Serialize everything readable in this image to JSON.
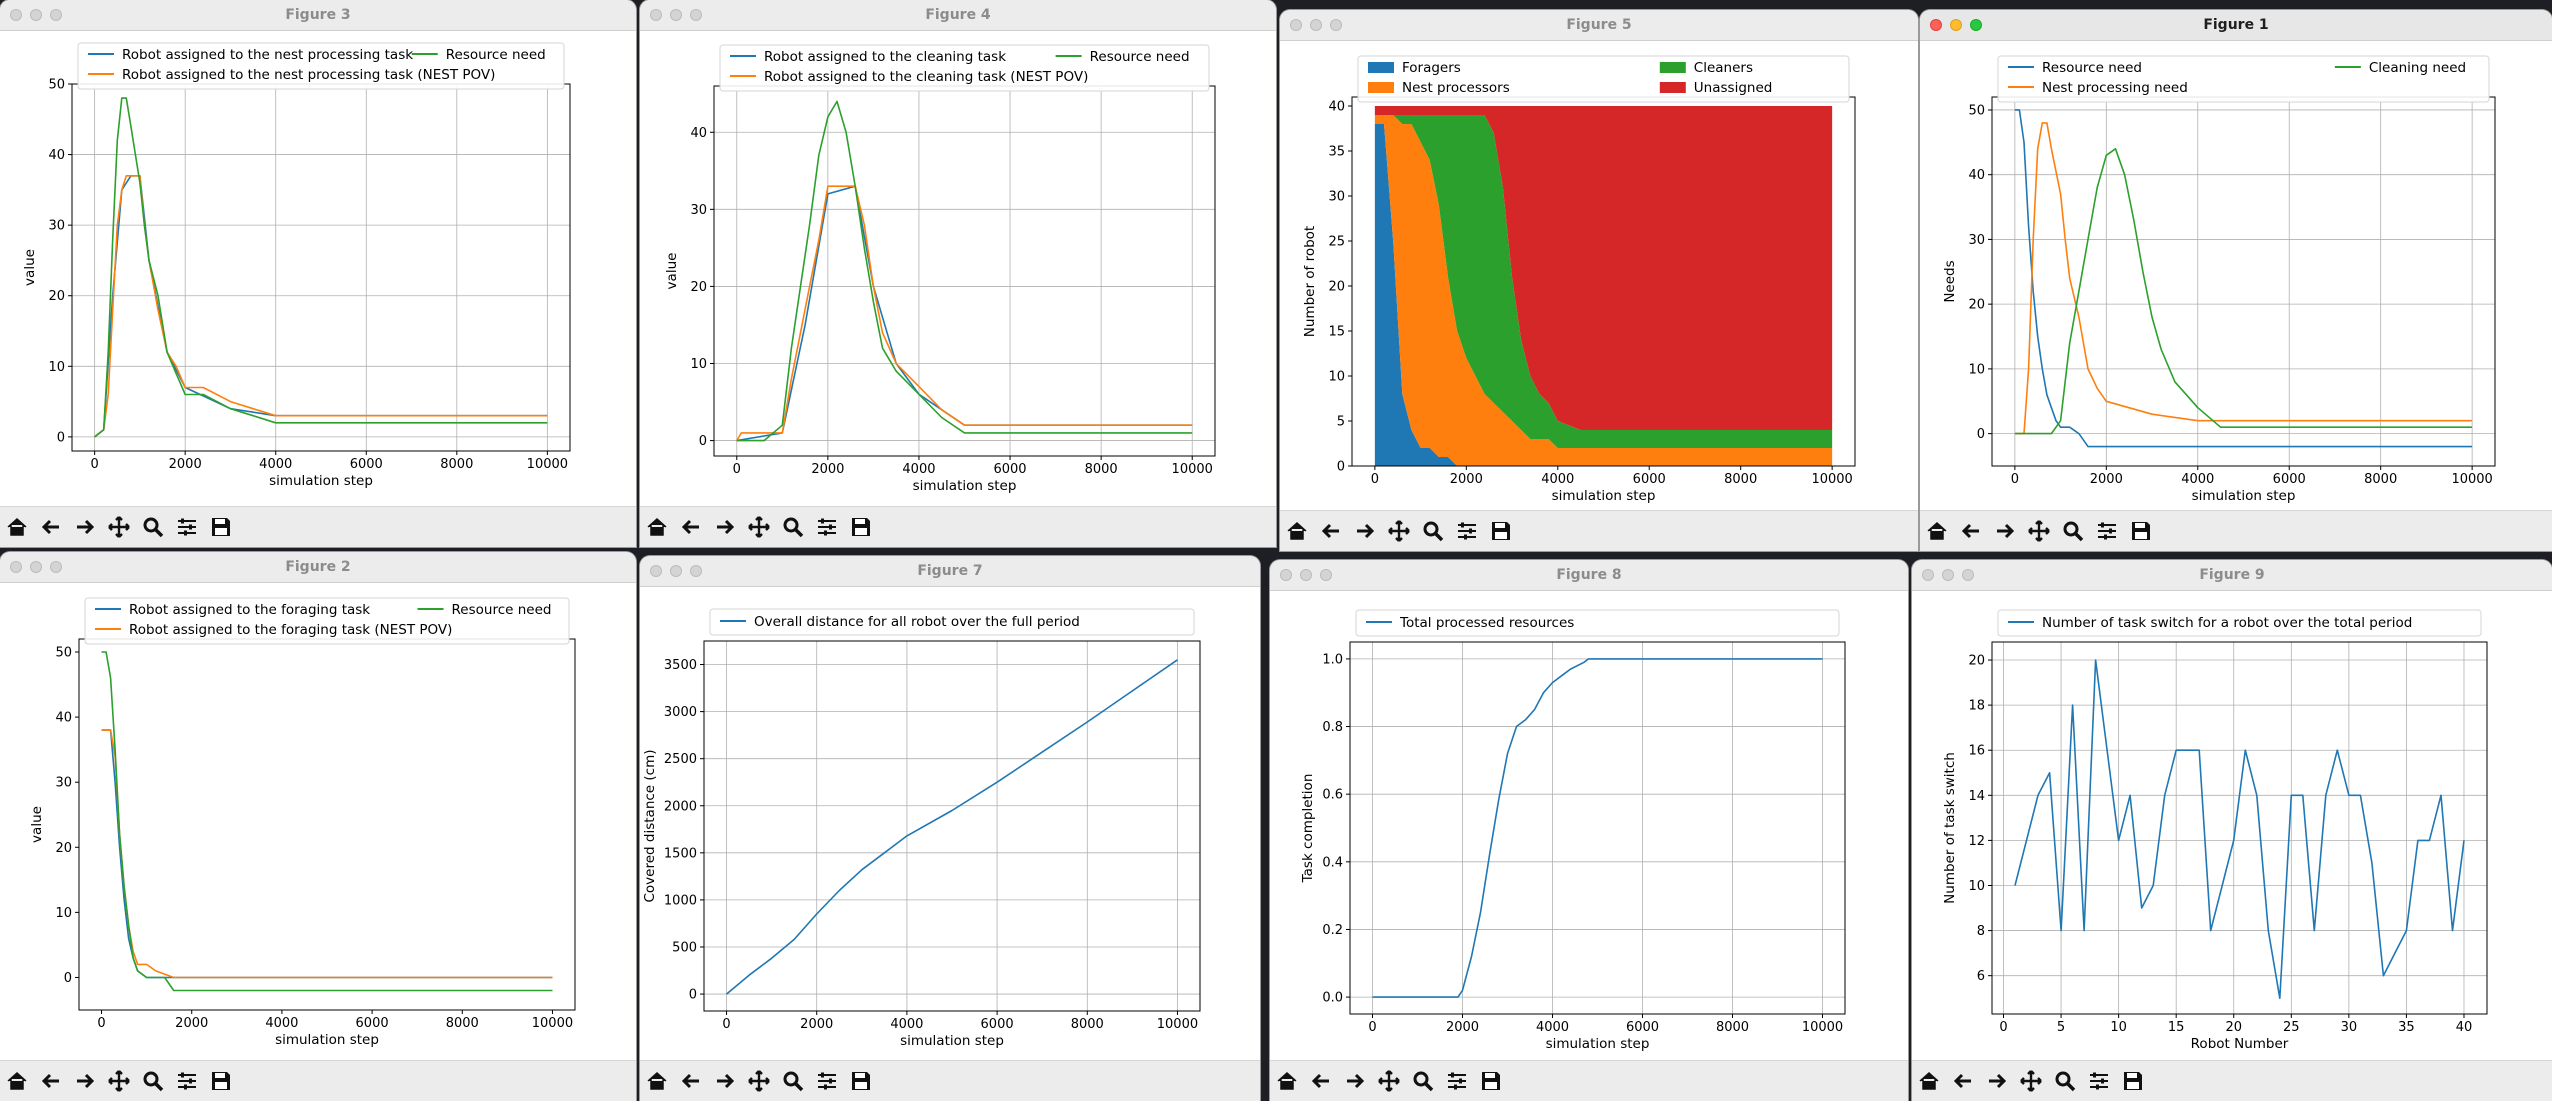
{
  "windows": {
    "fig3": {
      "title": "Figure 3"
    },
    "fig4": {
      "title": "Figure 4"
    },
    "fig5": {
      "title": "Figure 5"
    },
    "fig1": {
      "title": "Figure 1"
    },
    "fig2": {
      "title": "Figure 2"
    },
    "fig7": {
      "title": "Figure 7"
    },
    "fig8": {
      "title": "Figure 8"
    },
    "fig9": {
      "title": "Figure 9"
    }
  },
  "toolbar": [
    "home-icon",
    "back-icon",
    "forward-icon",
    "pan-icon",
    "zoom-icon",
    "configure-icon",
    "save-icon"
  ],
  "colors": {
    "blue": "#1f77b4",
    "orange": "#ff7f0e",
    "green": "#2ca02c",
    "red": "#d62728"
  },
  "chart_data": [
    {
      "id": "fig3",
      "type": "line",
      "xlabel": "simulation step",
      "ylabel": "value",
      "xlim": [
        -500,
        10500
      ],
      "ylim": [
        -2,
        50
      ],
      "xticks": [
        0,
        2000,
        4000,
        6000,
        8000,
        10000
      ],
      "yticks": [
        0,
        10,
        20,
        30,
        40,
        50
      ],
      "grid": true,
      "legend": "top",
      "series": [
        {
          "name": "Robot assigned to the nest processing task",
          "color": "blue",
          "x": [
            0,
            200,
            400,
            600,
            800,
            1000,
            1200,
            1600,
            2000,
            3000,
            4000,
            10000
          ],
          "y": [
            0,
            1,
            20,
            35,
            37,
            37,
            25,
            12,
            7,
            4,
            3,
            3
          ]
        },
        {
          "name": "Robot assigned to the nest processing task (NEST POV)",
          "color": "orange",
          "x": [
            0,
            200,
            300,
            400,
            500,
            600,
            700,
            800,
            1000,
            1100,
            1200,
            1400,
            1600,
            1800,
            2000,
            2400,
            3000,
            3500,
            4000,
            10000
          ],
          "y": [
            0,
            1,
            6,
            18,
            30,
            35,
            37,
            37,
            37,
            30,
            25,
            18,
            12,
            10,
            7,
            7,
            5,
            4,
            3,
            3
          ]
        },
        {
          "name": "Resource need",
          "color": "green",
          "x": [
            0,
            200,
            300,
            400,
            500,
            600,
            700,
            800,
            900,
            1000,
            1100,
            1200,
            1400,
            1600,
            1800,
            2000,
            2400,
            3000,
            3500,
            4000,
            10000
          ],
          "y": [
            0,
            1,
            12,
            28,
            42,
            48,
            48,
            44,
            40,
            36,
            30,
            25,
            20,
            12,
            9,
            6,
            6,
            4,
            3,
            2,
            2
          ]
        }
      ]
    },
    {
      "id": "fig4",
      "type": "line",
      "xlabel": "simulation step",
      "ylabel": "value",
      "xlim": [
        -500,
        10500
      ],
      "ylim": [
        -2,
        46
      ],
      "xticks": [
        0,
        2000,
        4000,
        6000,
        8000,
        10000
      ],
      "yticks": [
        0,
        10,
        20,
        30,
        40
      ],
      "grid": true,
      "legend": "top",
      "series": [
        {
          "name": "Robot assigned to the cleaning task",
          "color": "blue",
          "x": [
            0,
            1000,
            1500,
            2000,
            2600,
            3000,
            3500,
            4000,
            5000,
            10000
          ],
          "y": [
            0,
            1,
            15,
            32,
            33,
            20,
            10,
            6,
            2,
            2
          ]
        },
        {
          "name": "Robot assigned to the cleaning task (NEST POV)",
          "color": "orange",
          "x": [
            0,
            100,
            1000,
            1200,
            1400,
            1600,
            1800,
            2000,
            2400,
            2600,
            2800,
            3000,
            3200,
            3500,
            4000,
            4500,
            5000,
            10000
          ],
          "y": [
            0,
            1,
            1,
            8,
            14,
            20,
            26,
            33,
            33,
            33,
            28,
            20,
            14,
            10,
            7,
            4,
            2,
            2
          ]
        },
        {
          "name": "Resource need",
          "color": "green",
          "x": [
            0,
            600,
            1000,
            1200,
            1400,
            1600,
            1800,
            2000,
            2200,
            2400,
            2600,
            2800,
            3000,
            3200,
            3500,
            4000,
            4500,
            5000,
            10000
          ],
          "y": [
            0,
            0,
            2,
            12,
            20,
            28,
            37,
            42,
            44,
            40,
            33,
            25,
            18,
            12,
            9,
            6,
            3,
            1,
            1
          ]
        }
      ]
    },
    {
      "id": "fig5",
      "type": "area",
      "xlabel": "simulation step",
      "ylabel": "Number of robot",
      "xlim": [
        -500,
        10500
      ],
      "ylim": [
        0,
        41
      ],
      "xticks": [
        0,
        2000,
        4000,
        6000,
        8000,
        10000
      ],
      "yticks": [
        0,
        5,
        10,
        15,
        20,
        25,
        30,
        35,
        40
      ],
      "grid": false,
      "legend": "top",
      "x": [
        0,
        200,
        400,
        600,
        800,
        1000,
        1200,
        1400,
        1600,
        1800,
        2000,
        2200,
        2400,
        2600,
        2800,
        3000,
        3200,
        3400,
        3600,
        3800,
        4000,
        4500,
        5000,
        6000,
        8000,
        10000
      ],
      "series": [
        {
          "name": "Foragers",
          "color": "blue",
          "values": [
            38,
            38,
            25,
            8,
            4,
            2,
            2,
            1,
            1,
            0,
            0,
            0,
            0,
            0,
            0,
            0,
            0,
            0,
            0,
            0,
            0,
            0,
            0,
            0,
            0,
            0
          ]
        },
        {
          "name": "Nest processors",
          "color": "orange",
          "values": [
            1,
            1,
            14,
            30,
            34,
            34,
            32,
            28,
            20,
            15,
            12,
            10,
            8,
            7,
            6,
            5,
            4,
            3,
            3,
            3,
            2,
            2,
            2,
            2,
            2,
            2
          ]
        },
        {
          "name": "Cleaners",
          "color": "green",
          "values": [
            0,
            0,
            0,
            1,
            1,
            3,
            5,
            10,
            18,
            24,
            27,
            29,
            31,
            30,
            25,
            16,
            10,
            7,
            5,
            4,
            3,
            2,
            2,
            2,
            2,
            2
          ]
        },
        {
          "name": "Unassigned",
          "color": "red",
          "values": [
            1,
            1,
            1,
            1,
            1,
            1,
            1,
            1,
            1,
            1,
            1,
            1,
            1,
            3,
            9,
            19,
            26,
            30,
            32,
            33,
            35,
            36,
            36,
            36,
            36,
            36
          ]
        }
      ]
    },
    {
      "id": "fig1",
      "type": "line",
      "xlabel": "simulation step",
      "ylabel": "Needs",
      "xlim": [
        -500,
        10500
      ],
      "ylim": [
        -5,
        52
      ],
      "xticks": [
        0,
        2000,
        4000,
        6000,
        8000,
        10000
      ],
      "yticks": [
        0,
        10,
        20,
        30,
        40,
        50
      ],
      "grid": true,
      "legend": "top",
      "series": [
        {
          "name": "Resource need",
          "color": "blue",
          "x": [
            0,
            100,
            200,
            300,
            400,
            500,
            600,
            700,
            800,
            900,
            1000,
            1200,
            1400,
            1600,
            2000,
            10000
          ],
          "y": [
            50,
            50,
            45,
            32,
            22,
            15,
            10,
            6,
            4,
            2,
            1,
            1,
            0,
            -2,
            -2,
            -2
          ]
        },
        {
          "name": "Nest processing need",
          "color": "orange",
          "x": [
            0,
            200,
            300,
            400,
            500,
            600,
            700,
            800,
            1000,
            1100,
            1200,
            1400,
            1600,
            1800,
            2000,
            3000,
            4000,
            10000
          ],
          "y": [
            0,
            0,
            10,
            30,
            44,
            48,
            48,
            44,
            37,
            30,
            24,
            18,
            10,
            7,
            5,
            3,
            2,
            2
          ]
        },
        {
          "name": "Cleaning need",
          "color": "green",
          "x": [
            0,
            800,
            1000,
            1200,
            1400,
            1600,
            1800,
            2000,
            2200,
            2400,
            2600,
            2800,
            3000,
            3200,
            3500,
            4000,
            4500,
            10000
          ],
          "y": [
            0,
            0,
            2,
            14,
            22,
            30,
            38,
            43,
            44,
            40,
            33,
            25,
            18,
            13,
            8,
            4,
            1,
            1
          ]
        }
      ]
    },
    {
      "id": "fig2",
      "type": "line",
      "xlabel": "simulation step",
      "ylabel": "value",
      "xlim": [
        -500,
        10500
      ],
      "ylim": [
        -5,
        52
      ],
      "xticks": [
        0,
        2000,
        4000,
        6000,
        8000,
        10000
      ],
      "yticks": [
        0,
        10,
        20,
        30,
        40,
        50
      ],
      "grid": false,
      "legend": "top",
      "series": [
        {
          "name": "Robot assigned to the foraging task",
          "color": "blue",
          "x": [
            0,
            200,
            300,
            400,
            500,
            600,
            700,
            800,
            1000,
            1200,
            10000
          ],
          "y": [
            38,
            38,
            30,
            20,
            12,
            6,
            3,
            1,
            0,
            0,
            0
          ]
        },
        {
          "name": "Robot assigned to the foraging task (NEST POV)",
          "color": "orange",
          "x": [
            0,
            200,
            300,
            400,
            500,
            600,
            700,
            800,
            1000,
            1200,
            1600,
            2000,
            10000
          ],
          "y": [
            38,
            38,
            34,
            22,
            14,
            8,
            4,
            2,
            2,
            1,
            0,
            0,
            0
          ]
        },
        {
          "name": "Resource need",
          "color": "green",
          "x": [
            0,
            100,
            200,
            300,
            400,
            500,
            600,
            700,
            800,
            1000,
            1400,
            1600,
            2000,
            10000
          ],
          "y": [
            50,
            50,
            46,
            35,
            22,
            14,
            8,
            3,
            1,
            0,
            0,
            -2,
            -2,
            -2
          ]
        }
      ]
    },
    {
      "id": "fig7",
      "type": "line",
      "xlabel": "simulation step",
      "ylabel": "Covered distance (cm)",
      "xlim": [
        -500,
        10500
      ],
      "ylim": [
        -180,
        3750
      ],
      "xticks": [
        0,
        2000,
        4000,
        6000,
        8000,
        10000
      ],
      "yticks": [
        0,
        500,
        1000,
        1500,
        2000,
        2500,
        3000,
        3500
      ],
      "grid": true,
      "legend": "top",
      "series": [
        {
          "name": "Overall distance for all robot over the full period",
          "color": "blue",
          "x": [
            0,
            500,
            1000,
            1500,
            2000,
            2500,
            3000,
            3500,
            4000,
            5000,
            6000,
            7000,
            8000,
            9000,
            10000
          ],
          "y": [
            0,
            200,
            380,
            580,
            850,
            1100,
            1320,
            1500,
            1680,
            1950,
            2250,
            2570,
            2890,
            3220,
            3550
          ]
        }
      ]
    },
    {
      "id": "fig8",
      "type": "line",
      "xlabel": "simulation step",
      "ylabel": "Task completion",
      "xlim": [
        -500,
        10500
      ],
      "ylim": [
        -0.05,
        1.05
      ],
      "xticks": [
        0,
        2000,
        4000,
        6000,
        8000,
        10000
      ],
      "yticks": [
        0.0,
        0.2,
        0.4,
        0.6,
        0.8,
        1.0
      ],
      "grid": true,
      "legend": "top",
      "series": [
        {
          "name": "Total processed resources",
          "color": "blue",
          "x": [
            0,
            1900,
            2000,
            2200,
            2400,
            2600,
            2800,
            3000,
            3200,
            3400,
            3600,
            3800,
            4000,
            4200,
            4400,
            4700,
            4800,
            10000
          ],
          "y": [
            0,
            0,
            0.02,
            0.12,
            0.25,
            0.42,
            0.58,
            0.72,
            0.8,
            0.82,
            0.85,
            0.9,
            0.93,
            0.95,
            0.97,
            0.99,
            1.0,
            1.0
          ]
        }
      ]
    },
    {
      "id": "fig9",
      "type": "line",
      "xlabel": "Robot Number",
      "ylabel": "Number of task switch",
      "xlim": [
        -1,
        42
      ],
      "ylim": [
        4.3,
        20.8
      ],
      "xticks": [
        0,
        5,
        10,
        15,
        20,
        25,
        30,
        35,
        40
      ],
      "yticks": [
        6,
        8,
        10,
        12,
        14,
        16,
        18,
        20
      ],
      "grid": true,
      "legend": "top",
      "series": [
        {
          "name": "Number of task switch for a robot over the total period",
          "color": "blue",
          "x": [
            1,
            2,
            3,
            4,
            5,
            6,
            7,
            8,
            9,
            10,
            11,
            12,
            13,
            14,
            15,
            16,
            17,
            18,
            19,
            20,
            21,
            22,
            23,
            24,
            25,
            26,
            27,
            28,
            29,
            30,
            31,
            32,
            33,
            34,
            35,
            36,
            37,
            38,
            39,
            40
          ],
          "y": [
            10,
            12,
            14,
            15,
            8,
            18,
            8,
            20,
            16,
            12,
            14,
            9,
            10,
            14,
            16,
            16,
            16,
            8,
            10,
            12,
            16,
            14,
            8,
            5,
            14,
            14,
            8,
            14,
            16,
            14,
            14,
            11,
            6,
            7,
            8,
            12,
            12,
            14,
            8,
            12
          ]
        }
      ]
    }
  ]
}
